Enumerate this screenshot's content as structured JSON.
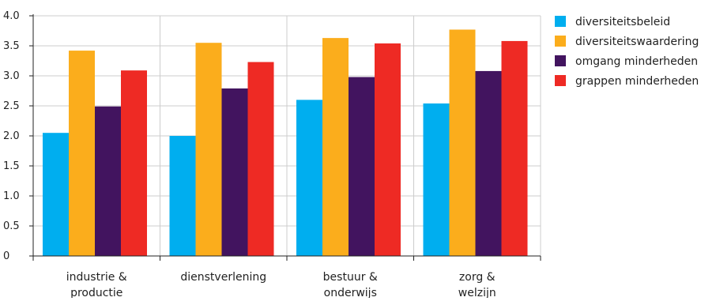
{
  "chart_data": {
    "type": "bar",
    "title": "",
    "xlabel": "",
    "ylabel": "",
    "categories": [
      [
        "industrie &",
        "productie"
      ],
      [
        "dienstverlening"
      ],
      [
        "bestuur &",
        "onderwijs"
      ],
      [
        "zorg &",
        "welzijn"
      ]
    ],
    "series": [
      {
        "name": "diversiteitsbeleid",
        "color": "#00aeef",
        "values": [
          2.05,
          2.0,
          2.6,
          2.54
        ]
      },
      {
        "name": "diversiteitswaardering",
        "color": "#fbad1c",
        "values": [
          3.42,
          3.55,
          3.63,
          3.77
        ]
      },
      {
        "name": "omgang minderheden",
        "color": "#42145f",
        "values": [
          2.49,
          2.79,
          2.98,
          3.08
        ]
      },
      {
        "name": "grappen minderheden",
        "color": "#ee2a24",
        "values": [
          3.09,
          3.23,
          3.54,
          3.58
        ]
      }
    ],
    "ylim": [
      0,
      4.0
    ],
    "yticks": [
      {
        "value": 0,
        "label": "0"
      },
      {
        "value": 0.5,
        "label": "0.5"
      },
      {
        "value": 1.0,
        "label": "1.0"
      },
      {
        "value": 1.5,
        "label": "1.5"
      },
      {
        "value": 2.0,
        "label": "2.0"
      },
      {
        "value": 2.5,
        "label": "2.5"
      },
      {
        "value": 3.0,
        "label": "3.0"
      },
      {
        "value": 3.5,
        "label": "3.5"
      },
      {
        "value": 4.0,
        "label": "4.0"
      }
    ],
    "grid": true,
    "legend_position": "right"
  }
}
